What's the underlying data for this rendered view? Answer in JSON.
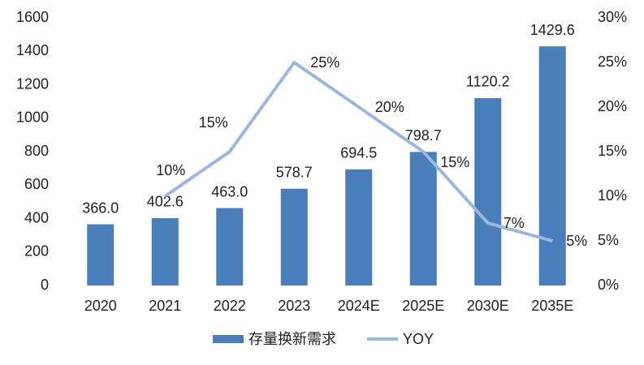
{
  "chart_data": {
    "type": "bar",
    "categories": [
      "2020",
      "2021",
      "2022",
      "2023",
      "2024E",
      "2025E",
      "2030E",
      "2035E"
    ],
    "series": [
      {
        "name": "存量换新需求",
        "type": "bar",
        "color": "#4a7ebb",
        "values": [
          366.0,
          402.6,
          463.0,
          578.7,
          694.5,
          798.7,
          1120.2,
          1429.6
        ],
        "value_labels": [
          "366.0",
          "402.6",
          "463.0",
          "578.7",
          "694.5",
          "798.7",
          "1120.2",
          "1429.6"
        ]
      },
      {
        "name": "YOY",
        "type": "line",
        "axis": "y2",
        "color": "#9bb7e0",
        "values": [
          null,
          10,
          15,
          25,
          20,
          15,
          7,
          5
        ],
        "value_labels": [
          null,
          "10%",
          "15%",
          "25%",
          "20%",
          "15%",
          "7%",
          "5%"
        ]
      }
    ],
    "ylim": [
      0,
      1600
    ],
    "yticks": [
      0,
      200,
      400,
      600,
      800,
      1000,
      1200,
      1400,
      1600
    ],
    "y2lim": [
      0,
      30
    ],
    "y2ticks": [
      {
        "value": 0,
        "label": "0%"
      },
      {
        "value": 5,
        "label": "5%"
      },
      {
        "value": 10,
        "label": "10%"
      },
      {
        "value": 15,
        "label": "15%"
      },
      {
        "value": 20,
        "label": "20%"
      },
      {
        "value": 25,
        "label": "25%"
      },
      {
        "value": 30,
        "label": "30%"
      }
    ],
    "legend": "bottom"
  }
}
